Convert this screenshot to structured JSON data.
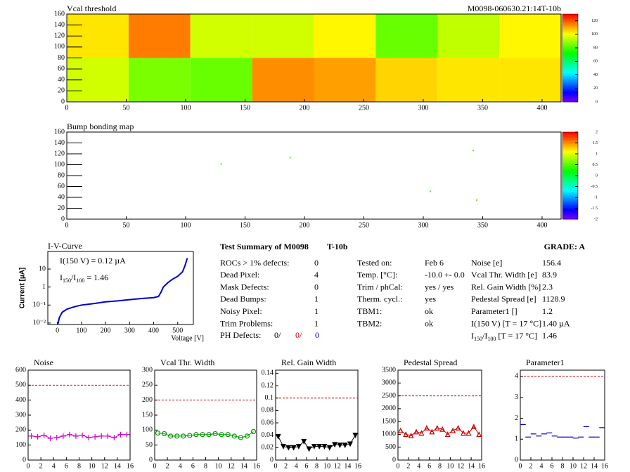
{
  "chart_data": [
    {
      "type": "heatmap",
      "title": "Vcal threshold",
      "label": "M0098-060630.21:14T-10b",
      "xlim": [
        0,
        416
      ],
      "xticks": [
        0,
        50,
        100,
        150,
        200,
        250,
        300,
        350,
        400
      ],
      "ylim": [
        0,
        160
      ],
      "yticks": [
        0,
        20,
        40,
        60,
        80,
        100,
        120,
        140,
        160
      ],
      "zlim": [
        0,
        130
      ],
      "zticks": [
        0,
        20,
        40,
        60,
        80,
        100,
        120
      ],
      "x_edges": [
        0,
        52,
        104,
        156,
        208,
        260,
        312,
        364,
        416
      ],
      "y_edges": [
        0,
        80,
        160
      ],
      "values": [
        [
          96,
          86,
          84,
          114,
          112,
          106,
          104,
          104
        ],
        [
          104,
          116,
          96,
          96,
          102,
          84,
          94,
          102
        ]
      ]
    },
    {
      "type": "scatter",
      "title": "Bump bonding map",
      "xlim": [
        0,
        416
      ],
      "xticks": [
        0,
        50,
        100,
        150,
        200,
        250,
        300,
        350,
        400
      ],
      "ylim": [
        0,
        160
      ],
      "yticks": [
        0,
        20,
        40,
        60,
        80,
        100,
        120,
        140,
        160
      ],
      "zlim": [
        -2,
        2
      ],
      "zticks": [
        -2,
        -1.5,
        -1,
        -0.5,
        0,
        0.5,
        1,
        1.5,
        2
      ],
      "x": [
        130,
        188,
        342,
        306,
        345
      ],
      "y": [
        101,
        113,
        126,
        51,
        35
      ],
      "z": [
        0.4,
        0.4,
        0.4,
        0.4,
        0.4
      ]
    },
    {
      "type": "line",
      "title": "I-V-Curve",
      "xlabel": "Voltage [V]",
      "ylabel": "Current [µA]",
      "log_y": true,
      "color": "#0000cc",
      "annotation": "I(150 V) = 0.12 µA",
      "ratio_label": [
        "I",
        "150",
        "/I",
        "100",
        " =  1.46"
      ],
      "xlim": [
        -40,
        565
      ],
      "xticks": [
        0,
        100,
        200,
        300,
        400,
        500
      ],
      "ylim": [
        0.0083,
        95
      ],
      "yticks": [
        {
          "value": 0.01,
          "label": "10⁻²"
        },
        {
          "value": 0.1,
          "label": "10⁻¹"
        },
        1,
        10
      ],
      "x": [
        2,
        8,
        20,
        40,
        70,
        100,
        150,
        200,
        250,
        300,
        350,
        400,
        420,
        430,
        440,
        460,
        480,
        500,
        520,
        530,
        540
      ],
      "values": [
        0.009,
        0.02,
        0.04,
        0.06,
        0.08,
        0.1,
        0.12,
        0.15,
        0.17,
        0.2,
        0.23,
        0.26,
        0.3,
        0.5,
        1,
        1.8,
        2.8,
        4,
        7,
        15,
        40
      ]
    },
    {
      "type": "scatter",
      "title": "Noise",
      "marker": "cross",
      "line": true,
      "color": "#cc00cc",
      "reference": 500,
      "xlim": [
        0,
        16
      ],
      "xticks": [
        0,
        2,
        4,
        6,
        8,
        10,
        12,
        14,
        16
      ],
      "ylim": [
        0,
        600
      ],
      "yticks": [
        0,
        100,
        200,
        300,
        400,
        500,
        600
      ],
      "x": [
        0.5,
        1.5,
        2.5,
        3.5,
        4.5,
        5.5,
        6.5,
        7.5,
        8.5,
        9.5,
        10.5,
        11.5,
        12.5,
        13.5,
        14.5,
        15.5
      ],
      "values": [
        160,
        155,
        165,
        145,
        150,
        160,
        170,
        160,
        165,
        150,
        155,
        160,
        160,
        150,
        170,
        170
      ]
    },
    {
      "type": "scatter",
      "title": "Vcal Thr. Width",
      "marker": "circle",
      "line": true,
      "color": "#009900",
      "reference": 200,
      "xlim": [
        0,
        16
      ],
      "xticks": [
        0,
        2,
        4,
        6,
        8,
        10,
        12,
        14,
        16
      ],
      "ylim": [
        0,
        300
      ],
      "yticks": [
        0,
        50,
        100,
        150,
        200,
        250,
        300
      ],
      "x": [
        0.5,
        1.5,
        2.5,
        3.5,
        4.5,
        5.5,
        6.5,
        7.5,
        8.5,
        9.5,
        10.5,
        11.5,
        12.5,
        13.5,
        14.5,
        15.5
      ],
      "values": [
        90,
        88,
        80,
        80,
        80,
        82,
        85,
        85,
        85,
        88,
        85,
        85,
        80,
        75,
        80,
        95
      ]
    },
    {
      "type": "scatter",
      "title": "Rel. Gain Width",
      "marker": "tri-down",
      "line": true,
      "color": "#000000",
      "reference": 0.1,
      "xlim": [
        0,
        16
      ],
      "xticks": [
        0,
        2,
        4,
        6,
        8,
        10,
        12,
        14,
        16
      ],
      "ylim": [
        0,
        0.145
      ],
      "yticks": [
        0,
        0.02,
        0.04,
        0.06,
        0.08,
        0.1,
        0.12,
        0.14
      ],
      "x": [
        0.5,
        1.5,
        2.5,
        3.5,
        4.5,
        5.5,
        6.5,
        7.5,
        8.5,
        9.5,
        10.5,
        11.5,
        12.5,
        13.5,
        14.5,
        15.5
      ],
      "values": [
        0.038,
        0.022,
        0.02,
        0.02,
        0.022,
        0.03,
        0.018,
        0.022,
        0.022,
        0.022,
        0.02,
        0.025,
        0.024,
        0.024,
        0.026,
        0.04
      ]
    },
    {
      "type": "scatter",
      "title": "Pedestal Spread",
      "marker": "tri-up",
      "line": true,
      "color": "#cc0000",
      "reference": 2500,
      "xlim": [
        0,
        16
      ],
      "xticks": [
        0,
        2,
        4,
        6,
        8,
        10,
        12,
        14,
        16
      ],
      "ylim": [
        0,
        3500
      ],
      "yticks": [
        0,
        500,
        1000,
        1500,
        2000,
        2500,
        3000,
        3500
      ],
      "x": [
        0.5,
        1.5,
        2.5,
        3.5,
        4.5,
        5.5,
        6.5,
        7.5,
        8.5,
        9.5,
        10.5,
        11.5,
        12.5,
        13.5,
        14.5,
        15.5
      ],
      "values": [
        1150,
        1000,
        950,
        1100,
        1050,
        1250,
        1100,
        1250,
        1200,
        1000,
        1150,
        1250,
        1050,
        1050,
        1300,
        1000
      ]
    },
    {
      "type": "scatter",
      "title": "Parameter1",
      "marker": "hbar",
      "line": false,
      "color": "#0000cc",
      "reference": 4,
      "xlim": [
        0,
        16
      ],
      "xticks": [
        0,
        2,
        4,
        6,
        8,
        10,
        12,
        14,
        16
      ],
      "ylim": [
        0,
        4.3
      ],
      "yticks": [
        0,
        1,
        2,
        3,
        4
      ],
      "x": [
        0.5,
        1.5,
        2.5,
        3.5,
        4.5,
        5.5,
        6.5,
        7.5,
        8.5,
        9.5,
        10.5,
        11.5,
        12.5,
        13.5,
        14.5,
        15.5
      ],
      "values": [
        1.7,
        1.1,
        1.25,
        1.15,
        1.25,
        1.3,
        1.15,
        1.1,
        1.1,
        1.1,
        1.05,
        1.1,
        1.6,
        1.1,
        1.1,
        1.55
      ]
    }
  ],
  "summary": {
    "title": "Test Summary of M0098",
    "module": "T-10b",
    "grade": "GRADE:  A",
    "defects": [
      [
        "ROCs > 1% defects:",
        "0"
      ],
      [
        "Dead Pixel:",
        "4"
      ],
      [
        "Mask Defects:",
        "0"
      ],
      [
        "Dead Bumps:",
        "1"
      ],
      [
        "Noisy Pixel:",
        "1"
      ],
      [
        "Trim Problems:",
        "1"
      ]
    ],
    "ph_defects": [
      "PH Defects:",
      "0/",
      "0/",
      "0"
    ],
    "conditions": [
      [
        "Tested on:",
        "Feb 6"
      ],
      [
        "Temp. [°C]:",
        "-10.0 +- 0.0"
      ],
      [
        "Trim / phCal:",
        "yes / yes"
      ],
      [
        "Therm. cycl.:",
        "yes"
      ],
      [
        "TBM1:",
        "ok"
      ],
      [
        "TBM2:",
        "ok"
      ]
    ],
    "results": [
      [
        "Noise [e]",
        "156.4"
      ],
      [
        "Vcal Thr. Width [e]",
        "83.9"
      ],
      [
        "Rel. Gain Width [%]",
        "2.3"
      ],
      [
        "Pedestal Spread [e]",
        "1128.9"
      ],
      [
        "Parameter1 []",
        "1.2"
      ],
      [
        "I(150 V) [T = 17 °C]",
        "1.40 µA"
      ]
    ],
    "ratio_row": [
      [
        "I",
        "150",
        "/I",
        "100",
        "  [T = 17 °C]"
      ],
      "1.46"
    ]
  }
}
